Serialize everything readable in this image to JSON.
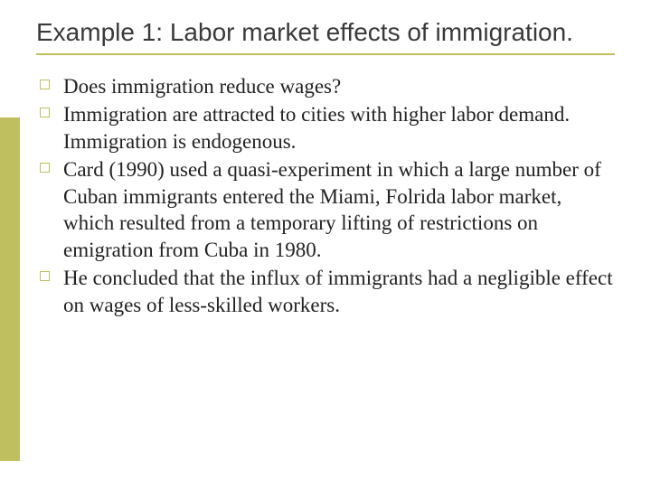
{
  "title": "Example 1: Labor market effects of immigration.",
  "accent_color": "#bfbf5f",
  "title_color": "#3a3a3a",
  "body_color": "#222222",
  "background_color": "#ffffff",
  "title_fontsize": 28,
  "body_fontsize": 23,
  "bullet_marker": "hollow-square",
  "bullets": [
    "Does immigration reduce wages?",
    "Immigration are attracted to cities with higher labor demand. Immigration is endogenous.",
    "Card (1990) used a quasi-experiment in which a large number of Cuban immigrants entered the Miami, Folrida labor market, which resulted from a temporary lifting of restrictions on emigration from Cuba in 1980.",
    "He concluded that the influx of immigrants had a negligible effect on wages of less-skilled workers."
  ]
}
